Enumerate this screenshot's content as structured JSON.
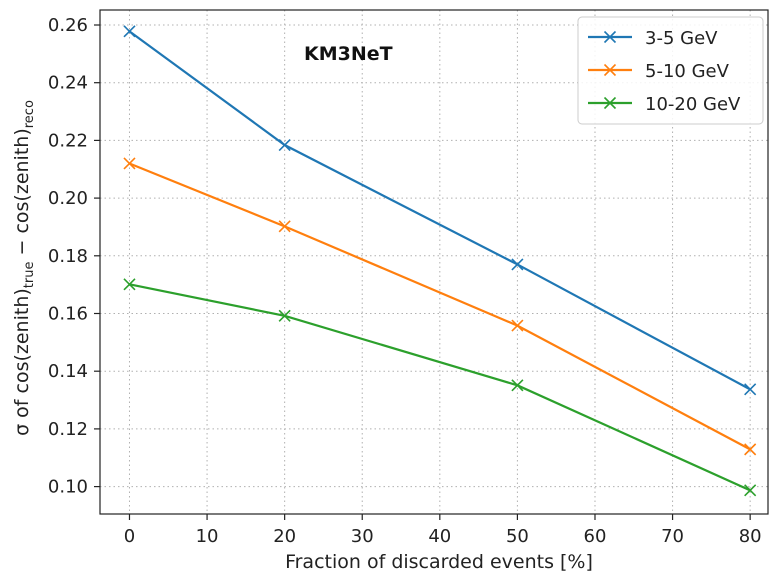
{
  "chart_data": {
    "type": "line",
    "title": "",
    "annotation": "KM3NeT",
    "xlabel": "Fraction of discarded events [%]",
    "ylabel": {
      "prefix": "σ of cos(zenith)",
      "sub1": "true",
      "middle": " − cos(zenith)",
      "sub2": "reco"
    },
    "xlim": [
      -3.8,
      82.3
    ],
    "ylim": [
      0.0905,
      0.2652
    ],
    "xticks": [
      0,
      10,
      20,
      30,
      40,
      50,
      60,
      70,
      80
    ],
    "yticks": [
      0.1,
      0.12,
      0.14,
      0.16,
      0.18,
      0.2,
      0.22,
      0.24,
      0.26
    ],
    "grid": true,
    "legend_position": "top-right",
    "marker": "x",
    "series": [
      {
        "name": "3-5 GeV",
        "color": "#1f77b4",
        "x": [
          0,
          20,
          50,
          80
        ],
        "y": [
          0.2578,
          0.2184,
          0.177,
          0.1337
        ]
      },
      {
        "name": "5-10 GeV",
        "color": "#ff7f0e",
        "x": [
          0,
          20,
          50,
          80
        ],
        "y": [
          0.212,
          0.1902,
          0.1558,
          0.1129
        ]
      },
      {
        "name": "10-20 GeV",
        "color": "#2ca02c",
        "x": [
          0,
          20,
          50,
          80
        ],
        "y": [
          0.1701,
          0.1592,
          0.1351,
          0.0987
        ]
      }
    ]
  }
}
